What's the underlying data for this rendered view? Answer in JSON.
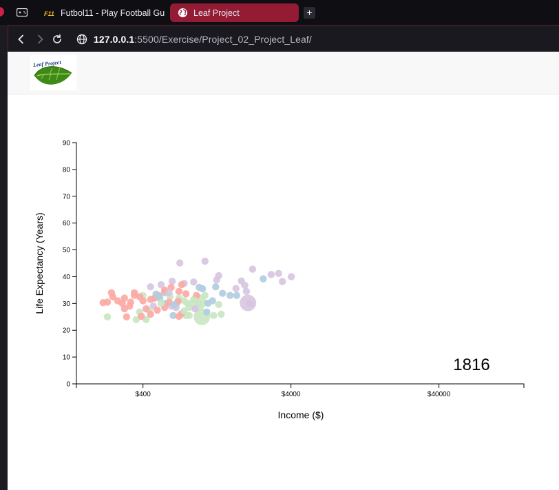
{
  "browser": {
    "tabs": [
      {
        "title": "Futbol11 - Play Football Gu",
        "favicon": "futbol11-icon",
        "active": false
      },
      {
        "title": "Leaf Project",
        "favicon": "globe-icon",
        "active": true
      }
    ],
    "new_tab_label": "+",
    "url": {
      "host": "127.0.0.1",
      "rest": ":5500/Exercise/Project_02_Project_Leaf/"
    },
    "accent_color": "#931b33"
  },
  "header": {
    "logo_text": "Leaf Project"
  },
  "chart_data": {
    "type": "scatter",
    "title": "",
    "xlabel": "Income ($)",
    "ylabel": "Life Expectancy (Years)",
    "x_scale": "log",
    "xlim": [
      142,
      150000
    ],
    "ylim": [
      0,
      90
    ],
    "x_ticks": [
      400,
      4000,
      40000
    ],
    "x_tick_labels": [
      "$400",
      "$4000",
      "$40000"
    ],
    "y_ticks": [
      0,
      10,
      20,
      30,
      40,
      50,
      60,
      70,
      80,
      90
    ],
    "year": "1816",
    "continent_colors": {
      "europe": "#fba9a5",
      "asia": "#c9e6c2",
      "americas": "#b1cde0",
      "africa": "#d7c6e1"
    },
    "points": [
      {
        "x": 2940,
        "y": 40.8,
        "continent": "africa"
      },
      {
        "x": 3500,
        "y": 38.2,
        "continent": "africa"
      },
      {
        "x": 2600,
        "y": 39.2,
        "continent": "americas"
      },
      {
        "x": 3300,
        "y": 41.2,
        "continent": "africa"
      },
      {
        "x": 4020,
        "y": 40.0,
        "continent": "africa"
      },
      {
        "x": 2200,
        "y": 42.8,
        "continent": "africa"
      },
      {
        "x": 1050,
        "y": 45.8,
        "continent": "africa"
      },
      {
        "x": 710,
        "y": 45.1,
        "continent": "africa"
      },
      {
        "x": 1300,
        "y": 40.4,
        "continent": "africa"
      },
      {
        "x": 1850,
        "y": 38.4,
        "continent": "africa"
      },
      {
        "x": 1950,
        "y": 36.8,
        "continent": "africa"
      },
      {
        "x": 1700,
        "y": 35.6,
        "continent": "africa"
      },
      {
        "x": 1260,
        "y": 38.8,
        "continent": "africa"
      },
      {
        "x": 1550,
        "y": 33.0,
        "continent": "americas"
      },
      {
        "x": 1720,
        "y": 33.0,
        "continent": "americas"
      },
      {
        "x": 1380,
        "y": 33.8,
        "continent": "americas"
      },
      {
        "x": 1240,
        "y": 36.2,
        "continent": "americas"
      },
      {
        "x": 2000,
        "y": 34.5,
        "continent": "africa"
      },
      {
        "x": 2140,
        "y": 29.9,
        "continent": "africa"
      },
      {
        "x": 1300,
        "y": 29.6,
        "continent": "asia"
      },
      {
        "x": 1100,
        "y": 30.1,
        "continent": "americas"
      },
      {
        "x": 1080,
        "y": 26.8,
        "continent": "americas"
      },
      {
        "x": 1200,
        "y": 25.5,
        "continent": "asia"
      },
      {
        "x": 780,
        "y": 25.5,
        "continent": "asia"
      },
      {
        "x": 800,
        "y": 30.0,
        "continent": "asia"
      },
      {
        "x": 1050,
        "y": 33.0,
        "continent": "asia"
      },
      {
        "x": 960,
        "y": 36.0,
        "continent": "americas"
      },
      {
        "x": 880,
        "y": 38.0,
        "continent": "africa"
      },
      {
        "x": 760,
        "y": 37.5,
        "continent": "africa"
      },
      {
        "x": 630,
        "y": 38.3,
        "continent": "africa"
      },
      {
        "x": 530,
        "y": 37.0,
        "continent": "africa"
      },
      {
        "x": 450,
        "y": 36.2,
        "continent": "africa"
      },
      {
        "x": 560,
        "y": 34.0,
        "continent": "americas"
      },
      {
        "x": 610,
        "y": 32.5,
        "continent": "asia"
      },
      {
        "x": 700,
        "y": 32.0,
        "continent": "asia"
      },
      {
        "x": 820,
        "y": 28.5,
        "continent": "asia"
      },
      {
        "x": 760,
        "y": 31.0,
        "continent": "asia"
      },
      {
        "x": 680,
        "y": 30.2,
        "continent": "americas"
      },
      {
        "x": 560,
        "y": 30.0,
        "continent": "americas"
      },
      {
        "x": 620,
        "y": 29.0,
        "continent": "africa"
      },
      {
        "x": 470,
        "y": 29.0,
        "continent": "africa"
      },
      {
        "x": 400,
        "y": 33.0,
        "continent": "asia"
      },
      {
        "x": 380,
        "y": 26.8,
        "continent": "asia"
      },
      {
        "x": 360,
        "y": 24.0,
        "continent": "asia"
      },
      {
        "x": 420,
        "y": 24.0,
        "continent": "asia"
      },
      {
        "x": 440,
        "y": 27.5,
        "continent": "asia"
      },
      {
        "x": 230,
        "y": 25.0,
        "continent": "asia"
      },
      {
        "x": 640,
        "y": 25.5,
        "continent": "americas"
      },
      {
        "x": 730,
        "y": 26.2,
        "continent": "europe"
      },
      {
        "x": 730,
        "y": 37.0,
        "continent": "europe"
      },
      {
        "x": 620,
        "y": 36.0,
        "continent": "europe"
      },
      {
        "x": 920,
        "y": 33.0,
        "continent": "europe"
      },
      {
        "x": 780,
        "y": 33.6,
        "continent": "europe"
      },
      {
        "x": 700,
        "y": 34.5,
        "continent": "europe"
      },
      {
        "x": 560,
        "y": 35.0,
        "continent": "europe"
      },
      {
        "x": 510,
        "y": 33.0,
        "continent": "europe"
      },
      {
        "x": 480,
        "y": 32.0,
        "continent": "europe"
      },
      {
        "x": 450,
        "y": 31.5,
        "continent": "europe"
      },
      {
        "x": 400,
        "y": 31.0,
        "continent": "europe"
      },
      {
        "x": 380,
        "y": 32.5,
        "continent": "europe"
      },
      {
        "x": 350,
        "y": 33.0,
        "continent": "europe"
      },
      {
        "x": 350,
        "y": 34.0,
        "continent": "europe"
      },
      {
        "x": 330,
        "y": 30.5,
        "continent": "europe"
      },
      {
        "x": 300,
        "y": 32.0,
        "continent": "europe"
      },
      {
        "x": 290,
        "y": 30.0,
        "continent": "europe"
      },
      {
        "x": 270,
        "y": 31.0,
        "continent": "europe"
      },
      {
        "x": 250,
        "y": 32.5,
        "continent": "europe"
      },
      {
        "x": 245,
        "y": 34.0,
        "continent": "europe"
      },
      {
        "x": 230,
        "y": 30.5,
        "continent": "europe"
      },
      {
        "x": 215,
        "y": 30.3,
        "continent": "europe"
      },
      {
        "x": 325,
        "y": 29.0,
        "continent": "europe"
      },
      {
        "x": 300,
        "y": 28.0,
        "continent": "europe"
      },
      {
        "x": 420,
        "y": 28.0,
        "continent": "europe"
      },
      {
        "x": 500,
        "y": 27.5,
        "continent": "europe"
      },
      {
        "x": 450,
        "y": 26.0,
        "continent": "europe"
      },
      {
        "x": 390,
        "y": 25.2,
        "continent": "europe"
      },
      {
        "x": 310,
        "y": 25.0,
        "continent": "europe"
      },
      {
        "x": 560,
        "y": 28.5,
        "continent": "europe"
      },
      {
        "x": 600,
        "y": 30.5,
        "continent": "europe"
      },
      {
        "x": 690,
        "y": 30.8,
        "continent": "europe"
      },
      {
        "x": 950,
        "y": 30.0,
        "continent": "asia"
      },
      {
        "x": 890,
        "y": 31.2,
        "continent": "asia"
      },
      {
        "x": 820,
        "y": 25.5,
        "continent": "asia"
      },
      {
        "x": 1350,
        "y": 26.0,
        "continent": "asia"
      },
      {
        "x": 760,
        "y": 27.2,
        "continent": "asia"
      },
      {
        "x": 700,
        "y": 25.2,
        "continent": "europe"
      },
      {
        "x": 670,
        "y": 28.5,
        "continent": "africa"
      },
      {
        "x": 900,
        "y": 28.0,
        "continent": "africa"
      },
      {
        "x": 1180,
        "y": 31.0,
        "continent": "americas"
      },
      {
        "x": 650,
        "y": 29.5,
        "continent": "americas"
      },
      {
        "x": 520,
        "y": 32.0,
        "continent": "americas"
      },
      {
        "x": 600,
        "y": 34.0,
        "continent": "africa"
      },
      {
        "x": 530,
        "y": 30.0,
        "continent": "asia"
      },
      {
        "x": 490,
        "y": 33.5,
        "continent": "americas"
      },
      {
        "x": 1010,
        "y": 35.5,
        "continent": "americas"
      },
      {
        "x": 2100,
        "y": 30.2,
        "continent": "africa"
      }
    ],
    "big_points": [
      {
        "x": 1000,
        "y": 25.0,
        "continent": "asia"
      },
      {
        "x": 940,
        "y": 30.5,
        "continent": "asia"
      },
      {
        "x": 2050,
        "y": 30.2,
        "continent": "africa"
      }
    ]
  }
}
